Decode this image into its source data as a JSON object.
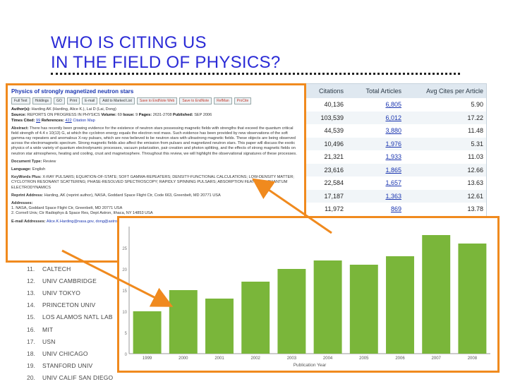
{
  "title": {
    "line1": "WHO IS CITING US",
    "line2": "IN THE FIELD OF PHYSICS?"
  },
  "stats_table": {
    "headers": [
      "Citations",
      "Total Articles",
      "Avg Cites per Article"
    ],
    "rows": [
      [
        "40,136",
        "6,805",
        "5.90"
      ],
      [
        "103,539",
        "6,012",
        "17.22"
      ],
      [
        "44,539",
        "3,880",
        "11.48"
      ],
      [
        "10,496",
        "1,976",
        "5.31"
      ],
      [
        "21,321",
        "1,933",
        "11.03"
      ],
      [
        "23,616",
        "1,865",
        "12.66"
      ],
      [
        "22,584",
        "1,657",
        "13.63"
      ],
      [
        "17,187",
        "1,363",
        "12.61"
      ],
      [
        "11,972",
        "869",
        "13.78"
      ],
      [
        "5,793",
        "810",
        "7.15"
      ]
    ]
  },
  "institutions": [
    {
      "rank": "11.",
      "name": "CALTECH"
    },
    {
      "rank": "12.",
      "name": "UNIV CAMBRIDGE"
    },
    {
      "rank": "13.",
      "name": "UNIV TOKYO"
    },
    {
      "rank": "14.",
      "name": "PRINCETON UNIV"
    },
    {
      "rank": "15.",
      "name": "LOS ALAMOS NATL LAB"
    },
    {
      "rank": "16.",
      "name": "MIT"
    },
    {
      "rank": "17.",
      "name": "USN"
    },
    {
      "rank": "18.",
      "name": "UNIV CHICAGO"
    },
    {
      "rank": "19.",
      "name": "STANFORD UNIV"
    },
    {
      "rank": "20.",
      "name": "UNIV CALIF SAN DIEGO"
    }
  ],
  "record": {
    "title": "Physics of strongly magnetized neutron stars",
    "tools": [
      "Full Text",
      "Holdings",
      "GO",
      "Print",
      "E-mail",
      "Add to Marked List",
      "Save to EndNote Web",
      "Save to EndNote",
      "RefMan",
      "ProCite"
    ],
    "authors_label": "Author(s):",
    "authors": "Harding AK (Harding, Alice K.), Lai D (Lai, Dong)",
    "source_label": "Source:",
    "source": "REPORTS ON PROGRESS IN PHYSICS",
    "volume_label": "Volume:",
    "volume": "69",
    "issue_label": "Issue:",
    "issue": "9",
    "pages_label": "Pages:",
    "pages": "2631-2708",
    "published_label": "Published:",
    "published": "SEP 2006",
    "times_cited_label": "Times Cited:",
    "times_cited": "99",
    "references_label": "References:",
    "references": "422",
    "citation_map": "Citation Map",
    "abstract_label": "Abstract:",
    "abstract": "There has recently been growing evidence for the existence of neutron stars possessing magnetic fields with strengths that exceed the quantum critical field strength of 4.4 x 10(13) G, at which the cyclotron energy equals the electron rest mass. Such evidence has been provided by new observations of the soft gamma-ray repeaters and anomalous X-ray pulsars, which are now believed to be neutron stars with ultrastrong magnetic fields. These objects are being observed across the electromagnetic spectrum. Strong magnetic fields also affect the emission from pulsars and magnetized neutron stars. This paper will discuss the exotic physics of a wide variety of quantum electrodynamic processes, vacuum polarization, pair creation and photon splitting, and the effects of strong magnetic fields on neutron star atmospheres, heating and cooling, crust and magnetosphere. Throughout this review, we will highlight the observational signatures of these processes.",
    "doc_type_label": "Document Type:",
    "doc_type": "Review",
    "language_label": "Language:",
    "language": "English",
    "keywords_label": "KeyWords Plus:",
    "keywords": "X-RAY PULSARS; EQUATION-OF-STATE; SOFT GAMMA-REPEATERS; DENSITY-FUNCTIONAL CALCULATIONS; LOW-DENSITY MATTER; CYCLOTRON RESONANT SCATTERING; PHASE-RESOLVED SPECTROSCOPY; RAPIDLY SPINNING PULSARS; ABSORPTION FEATURES; QUANTUM ELECTRODYNAMICS",
    "reprint_label": "Reprint Address:",
    "reprint": "Harding, AK (reprint author), NASA, Goddard Space Flight Ctr, Code 663, Greenbelt, MD 20771 USA",
    "addresses_label": "Addresses:",
    "address1": "1. NASA, Goddard Space Flight Ctr, Greenbelt, MD 20771 USA",
    "address2": "2. Cornell Univ, Ctr Radiophys & Space Res, Dept Astron, Ithaca, NY 14853 USA",
    "email_label": "E-mail Addresses:",
    "email": "Alice.K.Harding@nasa.gov, dong@astro.cornell.edu"
  },
  "chart_data": {
    "type": "bar",
    "categories": [
      "1999",
      "2000",
      "2001",
      "2002",
      "2003",
      "2004",
      "2005",
      "2006",
      "2007",
      "2008"
    ],
    "values": [
      10,
      15,
      13,
      17,
      20,
      22,
      21,
      23,
      28,
      26
    ],
    "ylim": [
      0,
      30
    ],
    "yticks": [
      "0",
      "5",
      "10",
      "15",
      "20",
      "25"
    ],
    "xlabel": "Publication Year",
    "bar_color": "#7ab63a",
    "grid": false
  },
  "accent_color": "#f08a1e"
}
